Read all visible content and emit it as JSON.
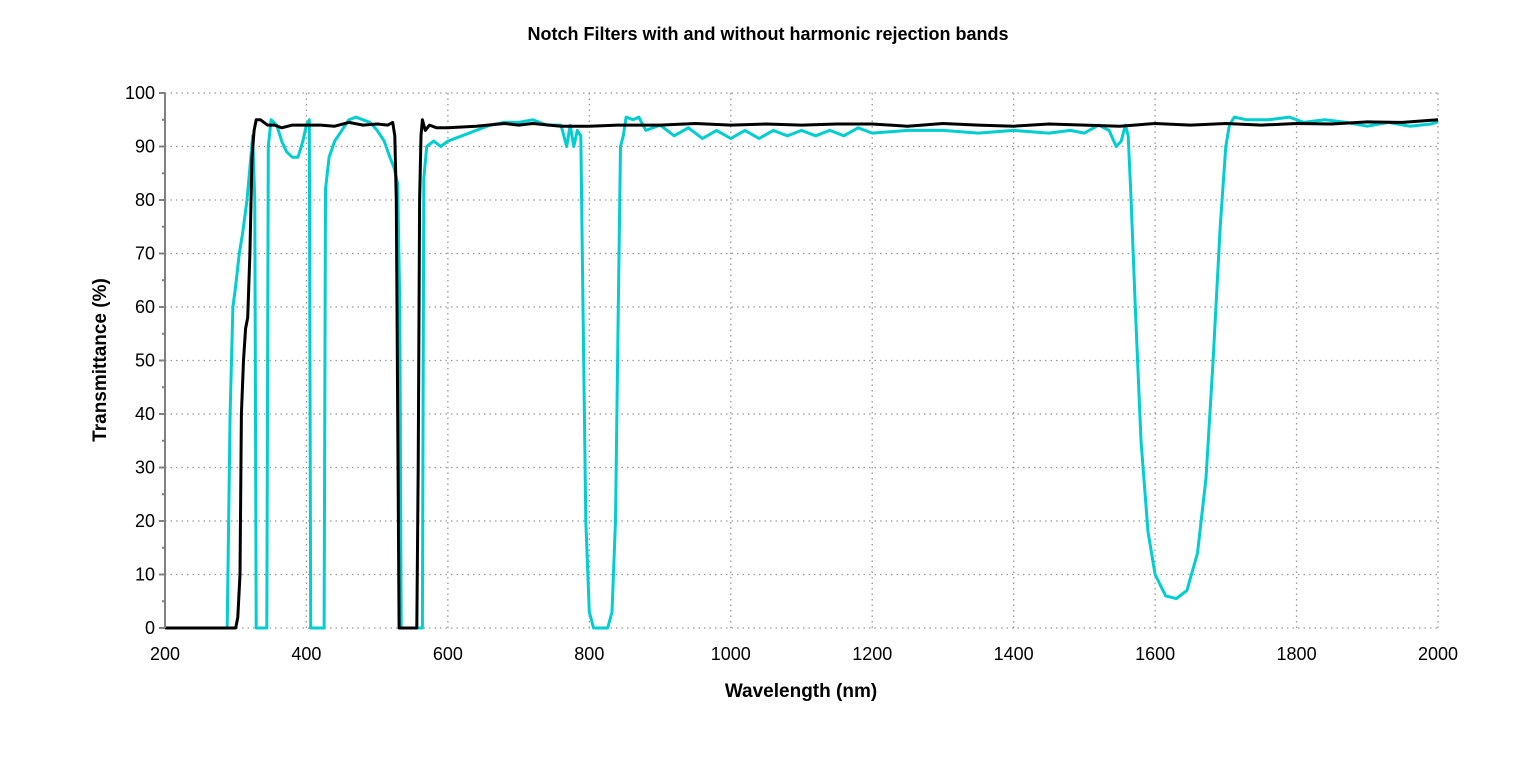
{
  "chart_data": {
    "type": "line",
    "title": "Notch Filters with and without harmonic rejection bands",
    "xlabel": "Wavelength (nm)",
    "ylabel": "Transmittance (%)",
    "xlim": [
      200,
      2000
    ],
    "ylim": [
      0,
      100
    ],
    "xticks": [
      200,
      400,
      600,
      800,
      1000,
      1200,
      1400,
      1600,
      1800,
      2000
    ],
    "yticks": [
      0,
      10,
      20,
      30,
      40,
      50,
      60,
      70,
      80,
      90,
      100
    ],
    "grid": true,
    "grid_style": "dotted",
    "legend": "none",
    "series": [
      {
        "color": "#00CED1",
        "points": [
          [
            200,
            0
          ],
          [
            288,
            0
          ],
          [
            292,
            40
          ],
          [
            296,
            60
          ],
          [
            300,
            64
          ],
          [
            305,
            70
          ],
          [
            310,
            74
          ],
          [
            316,
            80
          ],
          [
            320,
            86
          ],
          [
            324,
            92
          ],
          [
            327,
            80
          ],
          [
            329,
            0
          ],
          [
            344,
            0
          ],
          [
            346,
            90
          ],
          [
            350,
            95
          ],
          [
            358,
            94
          ],
          [
            365,
            91
          ],
          [
            372,
            89
          ],
          [
            380,
            88
          ],
          [
            388,
            88
          ],
          [
            395,
            91
          ],
          [
            400,
            94
          ],
          [
            404,
            95
          ],
          [
            406,
            0
          ],
          [
            425,
            0
          ],
          [
            427,
            82
          ],
          [
            432,
            88
          ],
          [
            440,
            91
          ],
          [
            450,
            93
          ],
          [
            460,
            95
          ],
          [
            470,
            95.5
          ],
          [
            480,
            95
          ],
          [
            490,
            94.5
          ],
          [
            500,
            93
          ],
          [
            510,
            91
          ],
          [
            518,
            88
          ],
          [
            524,
            86
          ],
          [
            529,
            83
          ],
          [
            532,
            60
          ],
          [
            534,
            0
          ],
          [
            564,
            0
          ],
          [
            566,
            84
          ],
          [
            570,
            90
          ],
          [
            580,
            91
          ],
          [
            590,
            90
          ],
          [
            600,
            91
          ],
          [
            620,
            92
          ],
          [
            640,
            93
          ],
          [
            660,
            94
          ],
          [
            680,
            94.5
          ],
          [
            700,
            94.5
          ],
          [
            720,
            95
          ],
          [
            740,
            94
          ],
          [
            760,
            94
          ],
          [
            768,
            90
          ],
          [
            773,
            94
          ],
          [
            778,
            90
          ],
          [
            783,
            93
          ],
          [
            788,
            92
          ],
          [
            791,
            60
          ],
          [
            795,
            20
          ],
          [
            800,
            3
          ],
          [
            806,
            0
          ],
          [
            826,
            0
          ],
          [
            832,
            3
          ],
          [
            837,
            20
          ],
          [
            841,
            60
          ],
          [
            844,
            90
          ],
          [
            848,
            92
          ],
          [
            852,
            95.5
          ],
          [
            862,
            95
          ],
          [
            870,
            95.5
          ],
          [
            880,
            93
          ],
          [
            900,
            94
          ],
          [
            920,
            92
          ],
          [
            940,
            93.5
          ],
          [
            960,
            91.5
          ],
          [
            980,
            93
          ],
          [
            1000,
            91.5
          ],
          [
            1020,
            93
          ],
          [
            1040,
            91.5
          ],
          [
            1060,
            93
          ],
          [
            1080,
            92
          ],
          [
            1100,
            93
          ],
          [
            1120,
            92
          ],
          [
            1140,
            93
          ],
          [
            1160,
            92
          ],
          [
            1180,
            93.5
          ],
          [
            1200,
            92.5
          ],
          [
            1250,
            93
          ],
          [
            1300,
            93
          ],
          [
            1350,
            92.5
          ],
          [
            1400,
            93
          ],
          [
            1450,
            92.5
          ],
          [
            1480,
            93
          ],
          [
            1500,
            92.5
          ],
          [
            1520,
            94
          ],
          [
            1535,
            93
          ],
          [
            1545,
            90
          ],
          [
            1552,
            91
          ],
          [
            1558,
            94
          ],
          [
            1562,
            92
          ],
          [
            1566,
            80
          ],
          [
            1572,
            60
          ],
          [
            1580,
            35
          ],
          [
            1590,
            18
          ],
          [
            1600,
            10
          ],
          [
            1615,
            6
          ],
          [
            1630,
            5.5
          ],
          [
            1645,
            7
          ],
          [
            1660,
            14
          ],
          [
            1672,
            28
          ],
          [
            1682,
            50
          ],
          [
            1692,
            75
          ],
          [
            1700,
            90
          ],
          [
            1705,
            94
          ],
          [
            1712,
            95.5
          ],
          [
            1730,
            95
          ],
          [
            1760,
            95
          ],
          [
            1790,
            95.5
          ],
          [
            1810,
            94.5
          ],
          [
            1840,
            95
          ],
          [
            1870,
            94.5
          ],
          [
            1900,
            93.8
          ],
          [
            1930,
            94.5
          ],
          [
            1960,
            93.8
          ],
          [
            1990,
            94.2
          ],
          [
            2000,
            94.6
          ]
        ]
      },
      {
        "color": "#000000",
        "points": [
          [
            200,
            0
          ],
          [
            300,
            0
          ],
          [
            303,
            2
          ],
          [
            306,
            10
          ],
          [
            308,
            40
          ],
          [
            311,
            50
          ],
          [
            314,
            56
          ],
          [
            317,
            58
          ],
          [
            320,
            70
          ],
          [
            323,
            88
          ],
          [
            326,
            93
          ],
          [
            329,
            95
          ],
          [
            335,
            95
          ],
          [
            345,
            94
          ],
          [
            355,
            94
          ],
          [
            365,
            93.5
          ],
          [
            380,
            94
          ],
          [
            400,
            94
          ],
          [
            420,
            94
          ],
          [
            440,
            93.8
          ],
          [
            460,
            94.5
          ],
          [
            480,
            94
          ],
          [
            500,
            94.2
          ],
          [
            515,
            94
          ],
          [
            522,
            94.5
          ],
          [
            525,
            92
          ],
          [
            527,
            80
          ],
          [
            529,
            40
          ],
          [
            531,
            0
          ],
          [
            556,
            0
          ],
          [
            558,
            30
          ],
          [
            560,
            80
          ],
          [
            562,
            92
          ],
          [
            564,
            95
          ],
          [
            568,
            93
          ],
          [
            574,
            94
          ],
          [
            584,
            93.5
          ],
          [
            600,
            93.5
          ],
          [
            640,
            93.8
          ],
          [
            680,
            94.3
          ],
          [
            700,
            94
          ],
          [
            720,
            94.3
          ],
          [
            760,
            93.8
          ],
          [
            800,
            93.8
          ],
          [
            840,
            94
          ],
          [
            900,
            94
          ],
          [
            950,
            94.3
          ],
          [
            1000,
            94
          ],
          [
            1050,
            94.2
          ],
          [
            1100,
            94
          ],
          [
            1150,
            94.2
          ],
          [
            1200,
            94.2
          ],
          [
            1250,
            93.8
          ],
          [
            1300,
            94.3
          ],
          [
            1350,
            94
          ],
          [
            1400,
            93.8
          ],
          [
            1450,
            94.2
          ],
          [
            1500,
            94
          ],
          [
            1550,
            93.8
          ],
          [
            1600,
            94.3
          ],
          [
            1650,
            94
          ],
          [
            1700,
            94.3
          ],
          [
            1750,
            94
          ],
          [
            1800,
            94.3
          ],
          [
            1850,
            94.2
          ],
          [
            1900,
            94.6
          ],
          [
            1950,
            94.5
          ],
          [
            2000,
            95
          ]
        ]
      }
    ]
  }
}
